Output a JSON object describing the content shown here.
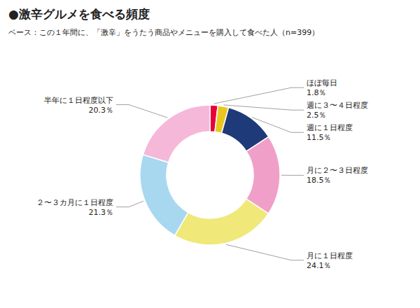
{
  "chart_data": {
    "type": "donut",
    "title": "●激辛グルメを食べる頻度",
    "subtitle": "ベース：この１年間に、「激辛」をうたう商品やメニューを購入して食べた人（n=399）",
    "categories": [
      "ほぼ毎日",
      "週に３〜４日程度",
      "週に１日程度",
      "月に２〜３日程度",
      "月に１日程度",
      "２〜３カ月に１日程度",
      "半年に１日程度以下"
    ],
    "values": [
      1.8,
      2.5,
      11.5,
      18.5,
      24.1,
      21.3,
      20.3
    ],
    "value_labels": [
      "1.8％",
      "2.5％",
      "11.5％",
      "18.5％",
      "24.1％",
      "21.3％",
      "20.3％"
    ],
    "colors": [
      "#e8003d",
      "#e8c820",
      "#1e3a78",
      "#f0a0c8",
      "#f0e878",
      "#a8d8f0",
      "#f5b8d8"
    ],
    "data_labels": true
  }
}
